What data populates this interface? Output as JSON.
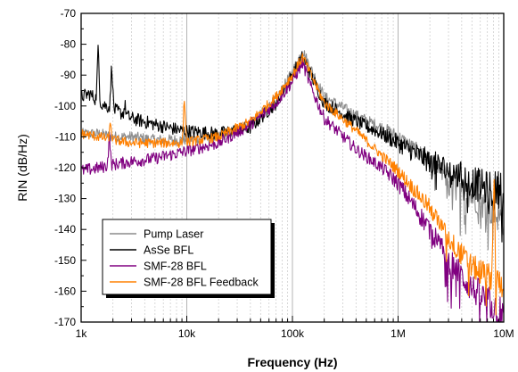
{
  "chart_data": {
    "type": "line",
    "xlabel": "Frequency (Hz)",
    "ylabel": "RIN (dB/Hz)",
    "x_scale": "log",
    "xlim": [
      1000,
      10000000
    ],
    "ylim": [
      -170,
      -70
    ],
    "x_ticks": [
      {
        "value": 1000,
        "label": "1k"
      },
      {
        "value": 10000,
        "label": "10k"
      },
      {
        "value": 100000,
        "label": "100k"
      },
      {
        "value": 1000000,
        "label": "1M"
      },
      {
        "value": 10000000,
        "label": "10M"
      }
    ],
    "y_ticks": [
      {
        "value": -70,
        "label": "-70"
      },
      {
        "value": -80,
        "label": "-80"
      },
      {
        "value": -90,
        "label": "-90"
      },
      {
        "value": -100,
        "label": "-100"
      },
      {
        "value": -110,
        "label": "-110"
      },
      {
        "value": -120,
        "label": "-120"
      },
      {
        "value": -130,
        "label": "-130"
      },
      {
        "value": -140,
        "label": "-140"
      },
      {
        "value": -150,
        "label": "-150"
      },
      {
        "value": -160,
        "label": "-160"
      },
      {
        "value": -170,
        "label": "-170"
      }
    ],
    "grid": {
      "major": true,
      "minor_x": true
    },
    "legend_position": "bottom-left",
    "series": [
      {
        "name": "Pump Laser",
        "color": "#8c8c8c",
        "noise": 1.8,
        "points": [
          [
            1000,
            -109
          ],
          [
            1500,
            -109
          ],
          [
            2000,
            -110
          ],
          [
            3000,
            -110
          ],
          [
            5000,
            -111
          ],
          [
            9000,
            -111
          ],
          [
            20000,
            -110
          ],
          [
            40000,
            -106
          ],
          [
            70000,
            -98
          ],
          [
            100000,
            -89
          ],
          [
            125000,
            -82
          ],
          [
            150000,
            -88
          ],
          [
            200000,
            -97
          ],
          [
            400000,
            -103
          ],
          [
            700000,
            -107
          ],
          [
            1000000,
            -110
          ],
          [
            2000000,
            -118
          ],
          [
            4000000,
            -127
          ],
          [
            7000000,
            -133
          ],
          [
            10000000,
            -137
          ]
        ],
        "spikes": []
      },
      {
        "name": "AsSe BFL",
        "color": "#000000",
        "noise": 2.2,
        "points": [
          [
            1000,
            -97
          ],
          [
            1200,
            -96
          ],
          [
            1500,
            -99
          ],
          [
            2000,
            -101
          ],
          [
            3000,
            -104
          ],
          [
            5000,
            -106
          ],
          [
            9000,
            -108
          ],
          [
            20000,
            -109
          ],
          [
            40000,
            -107
          ],
          [
            70000,
            -99
          ],
          [
            100000,
            -90
          ],
          [
            125000,
            -84
          ],
          [
            150000,
            -90
          ],
          [
            200000,
            -99
          ],
          [
            400000,
            -105
          ],
          [
            700000,
            -109
          ],
          [
            1000000,
            -112
          ],
          [
            2000000,
            -118
          ],
          [
            4000000,
            -123
          ],
          [
            7000000,
            -127
          ],
          [
            10000000,
            -127
          ]
        ],
        "spikes": [
          [
            1450,
            -82
          ],
          [
            1950,
            -87
          ],
          [
            2600,
            -100
          ]
        ]
      },
      {
        "name": "SMF-28 BFL",
        "color": "#800080",
        "noise": 2.0,
        "points": [
          [
            1000,
            -121
          ],
          [
            1500,
            -120
          ],
          [
            2000,
            -119
          ],
          [
            3000,
            -118
          ],
          [
            5000,
            -117
          ],
          [
            9000,
            -115
          ],
          [
            20000,
            -112
          ],
          [
            40000,
            -106
          ],
          [
            70000,
            -99
          ],
          [
            100000,
            -92
          ],
          [
            125000,
            -86
          ],
          [
            150000,
            -94
          ],
          [
            200000,
            -104
          ],
          [
            400000,
            -114
          ],
          [
            700000,
            -120
          ],
          [
            1000000,
            -125
          ],
          [
            2000000,
            -140
          ],
          [
            3000000,
            -150
          ],
          [
            5000000,
            -159
          ],
          [
            8000000,
            -165
          ],
          [
            10000000,
            -168
          ]
        ],
        "spikes": [
          [
            1850,
            -110
          ]
        ]
      },
      {
        "name": "SMF-28 BFL Feedback",
        "color": "#ff8000",
        "noise": 1.6,
        "points": [
          [
            1000,
            -109
          ],
          [
            1500,
            -110
          ],
          [
            2000,
            -111
          ],
          [
            3000,
            -112
          ],
          [
            5000,
            -112
          ],
          [
            9000,
            -112
          ],
          [
            20000,
            -110
          ],
          [
            40000,
            -105
          ],
          [
            70000,
            -97
          ],
          [
            100000,
            -90
          ],
          [
            125000,
            -84
          ],
          [
            150000,
            -90
          ],
          [
            200000,
            -99
          ],
          [
            400000,
            -108
          ],
          [
            700000,
            -116
          ],
          [
            1000000,
            -121
          ],
          [
            2000000,
            -133
          ],
          [
            3000000,
            -143
          ],
          [
            5000000,
            -152
          ],
          [
            8000000,
            -156
          ],
          [
            10000000,
            -158
          ]
        ],
        "spikes": [
          [
            1900,
            -106
          ],
          [
            9500,
            -98
          ],
          [
            8100000,
            -122
          ]
        ]
      }
    ]
  }
}
